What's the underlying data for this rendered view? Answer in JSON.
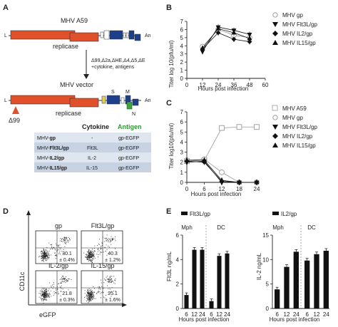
{
  "panel_labels": {
    "a": "A",
    "b": "B",
    "c": "C",
    "d": "D",
    "e": "E"
  },
  "panel_a": {
    "genome_title": "MHV A59",
    "l_label": "L",
    "an_label": "An",
    "replicase_label": "replicase",
    "deletion_text": "Δ99,Δ2a,ΔHE,Δ4,Δ5,ΔE",
    "addition_text": "+cytokine, antigens",
    "vector_title": "MHV vector",
    "s_label": "S",
    "m_label": "M",
    "n_label": "N",
    "d99_label": "Δ99",
    "table_header_cytokine": "Cytokine",
    "table_header_antigen": "Antigen",
    "table_rows": [
      {
        "prefix": "MHV-",
        "name": "gp",
        "cytokine": "-",
        "antigen": "gp-EGFP"
      },
      {
        "prefix": "MHV-",
        "name": "Flt3L/gp",
        "cytokine": "Flt3L",
        "antigen": "gp-EGFP"
      },
      {
        "prefix": "MHV-",
        "name": "IL2/gp",
        "cytokine": "IL-2",
        "antigen": "gp-EGFP"
      },
      {
        "prefix": "MHV-",
        "name": "IL15/gp",
        "cytokine": "IL-15",
        "antigen": "gp-EGFP"
      }
    ]
  },
  "panel_b": {
    "ylabel": "Titer log 10(pfu/ml)",
    "xlabel": "Hours post infection",
    "legend": [
      "MHV gp",
      "MHV Flt3L/gp",
      "MHV IL2/gp",
      "MHV IL15/gp"
    ]
  },
  "panel_c": {
    "ylabel": "Titer log10(pfu/ml)",
    "xlabel": "Hours post infection",
    "legend": [
      "MHV A59",
      "MHV gp",
      "MHV Flt3L/gp",
      "MHV IL2/gp",
      "MHV IL15/gp"
    ]
  },
  "panel_d": {
    "ylabel": "CD11c",
    "xlabel": "eGFP",
    "plots": [
      {
        "title": "gp",
        "value": "30.1",
        "error": "± 0.4%"
      },
      {
        "title": "Flt3L/gp",
        "value": "40.3",
        "error": "± 1.2%"
      },
      {
        "title": "IL-2/gp",
        "value": "21.8",
        "error": "± 0.3%"
      },
      {
        "title": "IL-15/gp",
        "value": "25.1",
        "error": "± 1.6%"
      }
    ]
  },
  "panel_e": {
    "xlabel": "Hours post infection",
    "left": {
      "legend": "Flt3L/gp",
      "ylabel": "Flt3L ng/mL",
      "group1": "Mph",
      "group2": "DC"
    },
    "right": {
      "legend": "IL2/gp",
      "ylabel": "IL-2 ng/mL",
      "group1": "Mph",
      "group2": "DC"
    }
  },
  "chart_data": [
    {
      "type": "line",
      "xlabel": "Hours post infection",
      "ylabel": "Titer log 10(pfu/ml)",
      "x": [
        0,
        12,
        24,
        36,
        48,
        60
      ],
      "ylim": [
        0,
        7
      ],
      "yticks": [
        0,
        1,
        2,
        3,
        4,
        5,
        6,
        7
      ],
      "xticks": [
        0,
        12,
        24,
        36,
        48,
        60
      ],
      "series": [
        {
          "name": "MHV gp",
          "x": [
            12,
            24,
            36,
            48
          ],
          "values": [
            3.9,
            6.0,
            5.3,
            5.0
          ],
          "marker": "circle"
        },
        {
          "name": "MHV Flt3L/gp",
          "x": [
            12,
            24,
            36,
            48
          ],
          "values": [
            3.3,
            6.3,
            5.9,
            5.4
          ],
          "marker": "triangle-down"
        },
        {
          "name": "MHV IL2/gp",
          "x": [
            12,
            24,
            36,
            48
          ],
          "values": [
            3.6,
            5.6,
            4.8,
            4.5
          ],
          "marker": "diamond"
        },
        {
          "name": "MHV IL15/gp",
          "x": [
            12,
            24,
            36,
            48
          ],
          "values": [
            3.7,
            6.1,
            5.6,
            4.9
          ],
          "marker": "triangle-up"
        }
      ]
    },
    {
      "type": "line",
      "xlabel": "Hours post infection",
      "ylabel": "Titer log10(pfu/ml)",
      "ylim": [
        0,
        7
      ],
      "yticks": [
        0,
        1,
        2,
        3,
        4,
        5,
        6,
        7
      ],
      "xticks": [
        0,
        6,
        12,
        18,
        24
      ],
      "series": [
        {
          "name": "MHV A59",
          "x": [
            0,
            6,
            12,
            18,
            24
          ],
          "values": [
            2.1,
            2.2,
            5.4,
            5.5,
            5.5
          ],
          "marker": "square"
        },
        {
          "name": "MHV gp",
          "x": [
            0,
            6,
            12,
            18,
            24
          ],
          "values": [
            2.2,
            2.3,
            1.0,
            0,
            0
          ],
          "marker": "circle"
        },
        {
          "name": "MHV Flt3L/gp",
          "x": [
            0,
            6,
            12,
            18,
            24
          ],
          "values": [
            2.0,
            2.1,
            0,
            0,
            0
          ],
          "marker": "triangle-down"
        },
        {
          "name": "MHV IL2/gp",
          "x": [
            0,
            6,
            12,
            18,
            24
          ],
          "values": [
            2.1,
            2.0,
            0.1,
            0,
            0
          ],
          "marker": "diamond"
        },
        {
          "name": "MHV IL15/gp",
          "x": [
            0,
            6,
            12,
            18,
            24
          ],
          "values": [
            2.2,
            2.2,
            0.2,
            0,
            0
          ],
          "marker": "triangle-up"
        }
      ]
    },
    {
      "type": "bar",
      "legend": "Flt3L/gp",
      "ylabel": "Flt3L ng/mL",
      "xlabel": "Hours post infection",
      "categories": [
        "6",
        "12",
        "24",
        "6",
        "12",
        "24"
      ],
      "groups": [
        "Mph",
        "Mph",
        "Mph",
        "DC",
        "DC",
        "DC"
      ],
      "values": [
        1.1,
        4.8,
        4.8,
        0.6,
        4.3,
        4.5
      ],
      "ylim": [
        0,
        6
      ],
      "yticks": [
        0,
        2,
        4,
        6
      ]
    },
    {
      "type": "bar",
      "legend": "IL2/gp",
      "ylabel": "IL-2 ng/mL",
      "xlabel": "Hours post infection",
      "categories": [
        "6",
        "12",
        "24",
        "6",
        "12",
        "24"
      ],
      "groups": [
        "Mph",
        "Mph",
        "Mph",
        "DC",
        "DC",
        "DC"
      ],
      "values": [
        3.9,
        8.5,
        11.6,
        9.8,
        11.1,
        11.8
      ],
      "ylim": [
        0,
        15
      ],
      "yticks": [
        0,
        5,
        10,
        15
      ]
    }
  ]
}
